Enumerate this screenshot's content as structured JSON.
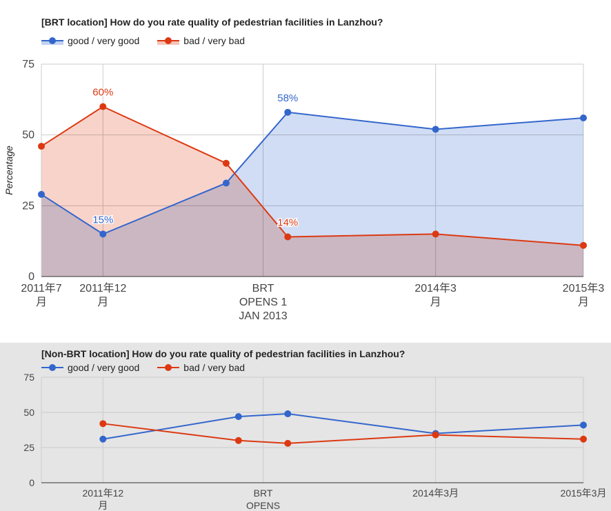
{
  "colors": {
    "good": "#3366cc",
    "bad": "#dc3912",
    "good_fill": "#c2d1f0",
    "bad_fill": "#f5c4b8",
    "overlap_fill": "#c9a4ac"
  },
  "chart_data": [
    {
      "type": "area",
      "title": "[BRT location] How do you rate quality of pedestrian facilities in Lanzhou?",
      "ylabel": "Percentage",
      "ylim": [
        0,
        75
      ],
      "yticks": [
        "0",
        "25",
        "50",
        "75"
      ],
      "x_ticks": [
        {
          "x": 0,
          "lines": [
            "2011年7",
            "月"
          ]
        },
        {
          "x": 5,
          "lines": [
            "2011年12",
            "月"
          ]
        },
        {
          "x": 18,
          "lines": [
            "BRT",
            "OPENS 1",
            "JAN 2013"
          ]
        },
        {
          "x": 32,
          "lines": [
            "2014年3",
            "月"
          ]
        },
        {
          "x": 44,
          "lines": [
            "2015年3",
            "月"
          ]
        }
      ],
      "x": [
        0,
        5,
        15,
        20,
        32,
        44
      ],
      "series": [
        {
          "name": "good / very good",
          "values": [
            29,
            15,
            33,
            58,
            52,
            56
          ],
          "annotations": [
            {
              "index": 1,
              "text": "15%"
            },
            {
              "index": 3,
              "text": "58%"
            }
          ]
        },
        {
          "name": "bad / very bad",
          "values": [
            46,
            60,
            40,
            14,
            15,
            11
          ],
          "annotations": [
            {
              "index": 1,
              "text": "60%"
            },
            {
              "index": 3,
              "text": "14%"
            }
          ]
        }
      ],
      "legend": "top",
      "grid": true
    },
    {
      "type": "line",
      "title": "[Non-BRT location] How do you rate quality of pedestrian facilities in Lanzhou?",
      "ylim": [
        0,
        75
      ],
      "yticks": [
        "0",
        "25",
        "50",
        "75"
      ],
      "x_ticks": [
        {
          "x": 5,
          "lines": [
            "2011年12",
            "月"
          ]
        },
        {
          "x": 18,
          "lines": [
            "BRT",
            "OPENS"
          ]
        },
        {
          "x": 32,
          "lines": [
            "2014年3月"
          ]
        },
        {
          "x": 44,
          "lines": [
            "2015年3月"
          ]
        }
      ],
      "x": [
        5,
        16,
        20,
        32,
        44
      ],
      "series": [
        {
          "name": "good / very good",
          "values": [
            31,
            47,
            49,
            35,
            41
          ]
        },
        {
          "name": "bad / very bad",
          "values": [
            42,
            30,
            28,
            34,
            31
          ]
        }
      ],
      "legend": "top",
      "grid": true
    }
  ]
}
